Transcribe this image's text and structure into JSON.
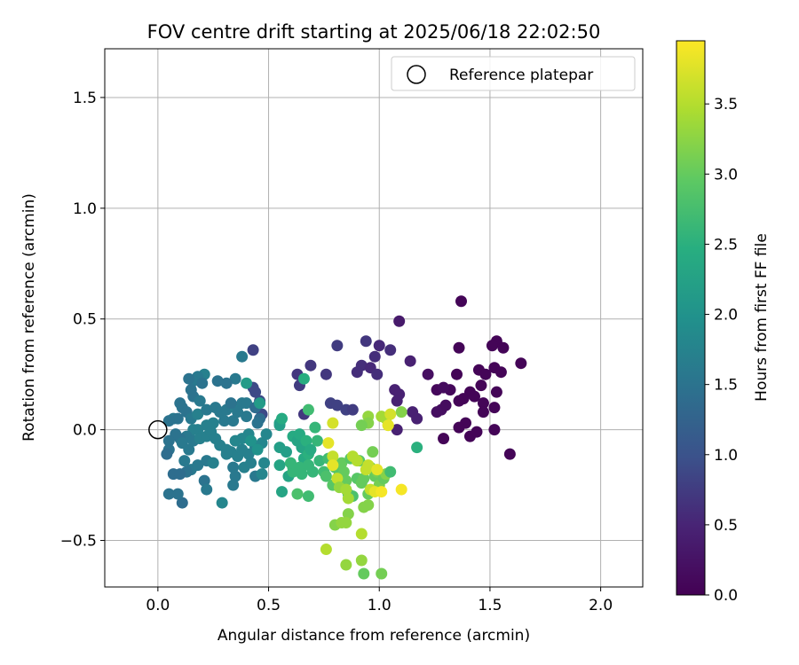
{
  "chart_data": {
    "type": "scatter",
    "title": "FOV centre drift starting at 2025/06/18 22:02:50",
    "xlabel": "Angular distance from reference (arcmin)",
    "ylabel": "Rotation from reference (arcmin)",
    "xlim": [
      -0.24,
      2.19
    ],
    "ylim": [
      -0.71,
      1.72
    ],
    "xticks": [
      "0.0",
      "0.5",
      "1.0",
      "1.5",
      "2.0"
    ],
    "xtick_values": [
      0.0,
      0.5,
      1.0,
      1.5,
      2.0
    ],
    "yticks": [
      "−0.5",
      "0.0",
      "0.5",
      "1.0",
      "1.5"
    ],
    "ytick_values": [
      -0.5,
      0.0,
      0.5,
      1.0,
      1.5
    ],
    "grid": true,
    "colormap": "viridis",
    "colorbar": {
      "label": "Hours from first FF file",
      "range": [
        0.0,
        3.95
      ],
      "ticks": [
        "0.0",
        "0.5",
        "1.0",
        "1.5",
        "2.0",
        "2.5",
        "3.0",
        "3.5"
      ],
      "tick_values": [
        0.0,
        0.5,
        1.0,
        1.5,
        2.0,
        2.5,
        3.0,
        3.5
      ]
    },
    "legend": {
      "label": "Reference platepar",
      "placement": "top-right"
    },
    "reference_point": {
      "x": 0.0,
      "y": 0.0
    },
    "points": [
      [
        1.37,
        0.58,
        0.05
      ],
      [
        1.64,
        0.3,
        0.05
      ],
      [
        1.53,
        0.4,
        0.05
      ],
      [
        1.51,
        0.38,
        0.05
      ],
      [
        1.56,
        0.37,
        0.05
      ],
      [
        1.36,
        0.37,
        0.05
      ],
      [
        1.52,
        0.28,
        0.05
      ],
      [
        1.55,
        0.26,
        0.05
      ],
      [
        1.45,
        0.27,
        0.05
      ],
      [
        1.48,
        0.25,
        0.05
      ],
      [
        1.35,
        0.25,
        0.05
      ],
      [
        1.46,
        0.2,
        0.05
      ],
      [
        1.41,
        0.17,
        0.05
      ],
      [
        1.53,
        0.17,
        0.05
      ],
      [
        1.38,
        0.14,
        0.05
      ],
      [
        1.36,
        0.13,
        0.05
      ],
      [
        1.47,
        0.12,
        0.05
      ],
      [
        1.47,
        0.08,
        0.05
      ],
      [
        1.52,
        0.1,
        0.05
      ],
      [
        1.43,
        0.15,
        0.05
      ],
      [
        1.39,
        0.03,
        0.05
      ],
      [
        1.36,
        0.01,
        0.05
      ],
      [
        1.41,
        -0.03,
        0.05
      ],
      [
        1.44,
        -0.01,
        0.05
      ],
      [
        1.52,
        0.0,
        0.05
      ],
      [
        1.59,
        -0.11,
        0.05
      ],
      [
        1.29,
        -0.04,
        0.05
      ],
      [
        1.32,
        0.18,
        0.1
      ],
      [
        1.22,
        0.25,
        0.2
      ],
      [
        1.26,
        0.18,
        0.1
      ],
      [
        1.29,
        0.19,
        0.15
      ],
      [
        1.28,
        0.09,
        0.2
      ],
      [
        1.26,
        0.08,
        0.2
      ],
      [
        1.3,
        0.11,
        0.15
      ],
      [
        1.09,
        0.49,
        0.35
      ],
      [
        0.94,
        0.4,
        0.7
      ],
      [
        1.0,
        0.38,
        0.55
      ],
      [
        0.81,
        0.38,
        0.75
      ],
      [
        1.05,
        0.36,
        0.6
      ],
      [
        0.98,
        0.33,
        0.6
      ],
      [
        1.14,
        0.31,
        0.45
      ],
      [
        0.92,
        0.29,
        0.6
      ],
      [
        0.96,
        0.28,
        0.55
      ],
      [
        0.69,
        0.29,
        0.7
      ],
      [
        0.9,
        0.26,
        0.6
      ],
      [
        0.76,
        0.25,
        0.7
      ],
      [
        0.99,
        0.25,
        0.6
      ],
      [
        0.63,
        0.25,
        0.7
      ],
      [
        0.64,
        0.2,
        0.75
      ],
      [
        1.07,
        0.18,
        0.45
      ],
      [
        1.09,
        0.16,
        0.45
      ],
      [
        0.78,
        0.12,
        0.8
      ],
      [
        0.81,
        0.11,
        0.8
      ],
      [
        0.85,
        0.09,
        0.8
      ],
      [
        0.88,
        0.09,
        0.75
      ],
      [
        1.15,
        0.08,
        0.45
      ],
      [
        1.08,
        0.13,
        0.45
      ],
      [
        1.17,
        0.05,
        0.45
      ],
      [
        1.08,
        0.0,
        0.45
      ],
      [
        0.66,
        0.07,
        0.7
      ],
      [
        0.43,
        0.36,
        0.8
      ],
      [
        0.43,
        0.19,
        0.9
      ],
      [
        0.44,
        0.17,
        0.9
      ],
      [
        0.46,
        0.13,
        0.9
      ],
      [
        0.47,
        0.07,
        0.9
      ],
      [
        0.38,
        0.33,
        1.6
      ],
      [
        0.35,
        0.23,
        1.6
      ],
      [
        0.31,
        0.21,
        1.5
      ],
      [
        0.27,
        0.22,
        1.5
      ],
      [
        0.21,
        0.25,
        1.7
      ],
      [
        0.18,
        0.24,
        1.6
      ],
      [
        0.16,
        0.22,
        1.6
      ],
      [
        0.14,
        0.23,
        1.5
      ],
      [
        0.15,
        0.18,
        1.5
      ],
      [
        0.2,
        0.21,
        1.5
      ],
      [
        0.16,
        0.15,
        1.5
      ],
      [
        0.19,
        0.13,
        1.6
      ],
      [
        0.1,
        0.12,
        1.5
      ],
      [
        0.11,
        0.1,
        1.5
      ],
      [
        0.13,
        0.08,
        1.5
      ],
      [
        0.07,
        0.05,
        1.6
      ],
      [
        0.09,
        0.05,
        1.5
      ],
      [
        0.05,
        0.04,
        1.5
      ],
      [
        0.15,
        0.05,
        1.6
      ],
      [
        0.18,
        0.07,
        1.7
      ],
      [
        0.22,
        0.09,
        1.6
      ],
      [
        0.26,
        0.1,
        1.6
      ],
      [
        0.28,
        0.08,
        1.6
      ],
      [
        0.31,
        0.09,
        1.6
      ],
      [
        0.33,
        0.11,
        1.6
      ],
      [
        0.35,
        0.1,
        1.7
      ],
      [
        0.38,
        0.12,
        1.6
      ],
      [
        0.4,
        0.12,
        1.6
      ],
      [
        0.44,
        0.1,
        1.4
      ],
      [
        0.46,
        0.05,
        1.4
      ],
      [
        0.34,
        0.04,
        1.6
      ],
      [
        0.3,
        0.04,
        1.6
      ],
      [
        0.25,
        0.03,
        1.7
      ],
      [
        0.22,
        0.02,
        1.7
      ],
      [
        0.18,
        0.0,
        1.7
      ],
      [
        0.16,
        0.0,
        1.7
      ],
      [
        0.13,
        -0.03,
        1.6
      ],
      [
        0.1,
        -0.04,
        1.5
      ],
      [
        0.08,
        -0.02,
        1.5
      ],
      [
        0.05,
        -0.05,
        1.5
      ],
      [
        0.05,
        -0.09,
        1.5
      ],
      [
        0.04,
        -0.11,
        1.4
      ],
      [
        0.11,
        -0.06,
        1.6
      ],
      [
        0.14,
        -0.09,
        1.6
      ],
      [
        0.16,
        -0.05,
        1.6
      ],
      [
        0.19,
        -0.04,
        1.7
      ],
      [
        0.22,
        -0.03,
        1.7
      ],
      [
        0.24,
        -0.01,
        1.7
      ],
      [
        0.26,
        -0.04,
        1.7
      ],
      [
        0.28,
        -0.07,
        1.7
      ],
      [
        0.31,
        -0.09,
        1.7
      ],
      [
        0.33,
        -0.1,
        1.7
      ],
      [
        0.36,
        -0.12,
        1.7
      ],
      [
        0.38,
        -0.09,
        1.7
      ],
      [
        0.41,
        -0.11,
        1.7
      ],
      [
        0.44,
        -0.08,
        1.7
      ],
      [
        0.47,
        -0.06,
        1.8
      ],
      [
        0.49,
        -0.02,
        1.8
      ],
      [
        0.41,
        -0.02,
        1.8
      ],
      [
        0.38,
        -0.04,
        1.8
      ],
      [
        0.35,
        -0.05,
        1.8
      ],
      [
        0.12,
        -0.14,
        1.6
      ],
      [
        0.15,
        -0.18,
        1.6
      ],
      [
        0.18,
        -0.16,
        1.6
      ],
      [
        0.22,
        -0.14,
        1.6
      ],
      [
        0.25,
        -0.15,
        1.7
      ],
      [
        0.13,
        -0.19,
        1.5
      ],
      [
        0.07,
        -0.2,
        1.4
      ],
      [
        0.1,
        -0.2,
        1.4
      ],
      [
        0.11,
        -0.33,
        1.4
      ],
      [
        0.05,
        -0.29,
        1.5
      ],
      [
        0.09,
        -0.29,
        1.5
      ],
      [
        0.21,
        -0.23,
        1.5
      ],
      [
        0.22,
        -0.27,
        1.6
      ],
      [
        0.34,
        -0.17,
        1.6
      ],
      [
        0.35,
        -0.21,
        1.6
      ],
      [
        0.34,
        -0.25,
        1.6
      ],
      [
        0.39,
        -0.17,
        1.7
      ],
      [
        0.42,
        -0.15,
        1.7
      ],
      [
        0.44,
        -0.21,
        1.6
      ],
      [
        0.47,
        -0.2,
        1.8
      ],
      [
        0.48,
        -0.15,
        1.8
      ],
      [
        0.29,
        -0.33,
        1.8
      ],
      [
        0.31,
        -0.11,
        1.7
      ],
      [
        0.45,
        0.03,
        1.5
      ],
      [
        0.4,
        0.06,
        1.6
      ],
      [
        0.36,
        0.08,
        1.6
      ],
      [
        0.33,
        0.12,
        1.5
      ],
      [
        0.4,
        0.21,
        2.15
      ],
      [
        0.46,
        0.12,
        2.15
      ],
      [
        0.42,
        -0.05,
        2.0
      ],
      [
        0.45,
        -0.09,
        2.0
      ],
      [
        0.55,
        0.03,
        2.3
      ],
      [
        0.55,
        0.02,
        2.2
      ],
      [
        0.56,
        0.05,
        2.4
      ],
      [
        0.55,
        -0.08,
        2.2
      ],
      [
        0.55,
        -0.16,
        2.3
      ],
      [
        0.56,
        -0.28,
        2.3
      ],
      [
        0.58,
        -0.1,
        2.2
      ],
      [
        0.59,
        -0.21,
        2.3
      ],
      [
        0.61,
        -0.03,
        2.4
      ],
      [
        0.63,
        -0.05,
        2.3
      ],
      [
        0.64,
        -0.02,
        2.4
      ],
      [
        0.65,
        -0.08,
        2.3
      ],
      [
        0.66,
        -0.13,
        2.4
      ],
      [
        0.67,
        -0.05,
        2.5
      ],
      [
        0.68,
        -0.11,
        2.5
      ],
      [
        0.69,
        -0.09,
        2.4
      ],
      [
        0.66,
        0.23,
        2.45
      ],
      [
        0.68,
        0.09,
        2.7
      ],
      [
        0.71,
        0.01,
        2.6
      ],
      [
        0.72,
        -0.05,
        2.6
      ],
      [
        0.73,
        -0.14,
        2.6
      ],
      [
        0.7,
        -0.19,
        2.6
      ],
      [
        0.61,
        -0.17,
        2.6
      ],
      [
        0.61,
        -0.19,
        2.6
      ],
      [
        0.6,
        -0.15,
        2.6
      ],
      [
        0.64,
        -0.17,
        2.6
      ],
      [
        0.65,
        -0.2,
        2.6
      ],
      [
        0.68,
        -0.16,
        2.6
      ],
      [
        0.68,
        -0.3,
        2.7
      ],
      [
        0.63,
        -0.29,
        2.8
      ],
      [
        0.75,
        -0.19,
        2.7
      ],
      [
        0.76,
        -0.21,
        2.8
      ],
      [
        0.77,
        -0.13,
        2.7
      ],
      [
        0.79,
        -0.25,
        2.9
      ],
      [
        0.8,
        -0.17,
        2.9
      ],
      [
        0.82,
        -0.2,
        2.9
      ],
      [
        0.83,
        -0.15,
        3.0
      ],
      [
        0.84,
        -0.19,
        3.0
      ],
      [
        0.85,
        -0.23,
        3.0
      ],
      [
        0.86,
        -0.29,
        2.7
      ],
      [
        0.87,
        -0.13,
        2.9
      ],
      [
        0.88,
        -0.3,
        2.8
      ],
      [
        0.9,
        -0.22,
        2.9
      ],
      [
        0.91,
        -0.14,
        2.9
      ],
      [
        0.92,
        -0.24,
        3.0
      ],
      [
        0.93,
        -0.22,
        3.0
      ],
      [
        0.95,
        -0.29,
        3.0
      ],
      [
        0.96,
        -0.17,
        3.1
      ],
      [
        0.97,
        -0.1,
        3.1
      ],
      [
        0.98,
        -0.21,
        3.0
      ],
      [
        0.99,
        -0.19,
        3.1
      ],
      [
        1.0,
        -0.25,
        3.1
      ],
      [
        1.02,
        -0.22,
        3.0
      ],
      [
        1.03,
        -0.2,
        3.2
      ],
      [
        1.05,
        -0.19,
        2.7
      ],
      [
        1.1,
        0.08,
        3.2
      ],
      [
        1.17,
        -0.08,
        2.5
      ],
      [
        0.86,
        -0.38,
        3.2
      ],
      [
        0.8,
        -0.43,
        3.2
      ],
      [
        0.83,
        -0.42,
        3.3
      ],
      [
        0.85,
        -0.42,
        3.3
      ],
      [
        0.93,
        -0.35,
        3.2
      ],
      [
        0.95,
        -0.34,
        3.2
      ],
      [
        0.92,
        -0.47,
        3.5
      ],
      [
        0.92,
        -0.59,
        3.3
      ],
      [
        0.85,
        -0.61,
        3.3
      ],
      [
        0.93,
        -0.65,
        3.0
      ],
      [
        1.01,
        -0.65,
        3.1
      ],
      [
        0.76,
        -0.54,
        3.5
      ],
      [
        0.95,
        0.06,
        3.3
      ],
      [
        0.95,
        0.03,
        3.2
      ],
      [
        0.92,
        0.02,
        3.1
      ],
      [
        1.01,
        0.06,
        3.4
      ],
      [
        1.03,
        0.05,
        3.4
      ],
      [
        1.04,
        0.02,
        3.5
      ],
      [
        1.05,
        0.07,
        3.7
      ],
      [
        0.79,
        0.03,
        3.7
      ],
      [
        0.77,
        -0.06,
        3.8
      ],
      [
        0.79,
        -0.12,
        3.6
      ],
      [
        0.79,
        -0.16,
        3.8
      ],
      [
        0.81,
        -0.22,
        3.6
      ],
      [
        0.82,
        -0.26,
        3.3
      ],
      [
        0.85,
        -0.27,
        3.4
      ],
      [
        0.86,
        -0.31,
        3.4
      ],
      [
        0.88,
        -0.12,
        3.5
      ],
      [
        0.9,
        -0.14,
        3.5
      ],
      [
        0.94,
        -0.18,
        3.6
      ],
      [
        0.95,
        -0.16,
        3.6
      ],
      [
        0.96,
        -0.27,
        3.6
      ],
      [
        0.98,
        -0.28,
        3.8
      ],
      [
        0.99,
        -0.18,
        3.8
      ],
      [
        1.01,
        -0.28,
        3.9
      ],
      [
        1.04,
        0.02,
        3.8
      ],
      [
        1.1,
        -0.27,
        3.9
      ]
    ]
  }
}
